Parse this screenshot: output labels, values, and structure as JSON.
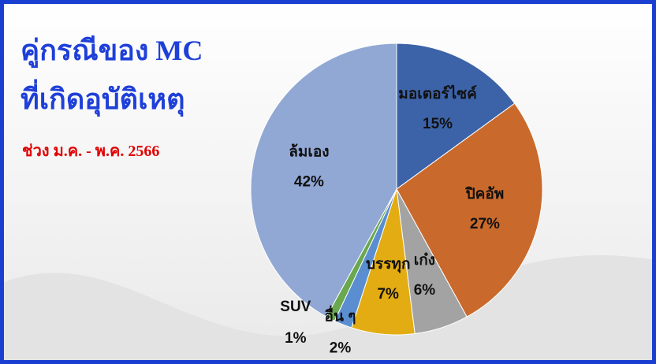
{
  "chart_data": {
    "type": "pie",
    "title": [
      "คู่กรณีของ MC",
      "ที่เกิดอุบัติเหตุ"
    ],
    "subtitle": "ช่วง ม.ค. -  พ.ค. 2566",
    "categories": [
      "มอเตอร์ไซค์",
      "ปิคอัพ",
      "เก๋ง",
      "บรรทุก",
      "อื่น ๆ",
      "SUV",
      "ล้มเอง"
    ],
    "values": [
      15,
      27,
      6,
      7,
      2,
      1,
      42
    ],
    "value_labels": [
      "15%",
      "27%",
      "6%",
      "7%",
      "2%",
      "1%",
      "42%"
    ],
    "colors": [
      "#3c63a8",
      "#c96a2c",
      "#a3a3a3",
      "#e2ac12",
      "#5a8ed0",
      "#6aa84f",
      "#91a7d4"
    ]
  }
}
